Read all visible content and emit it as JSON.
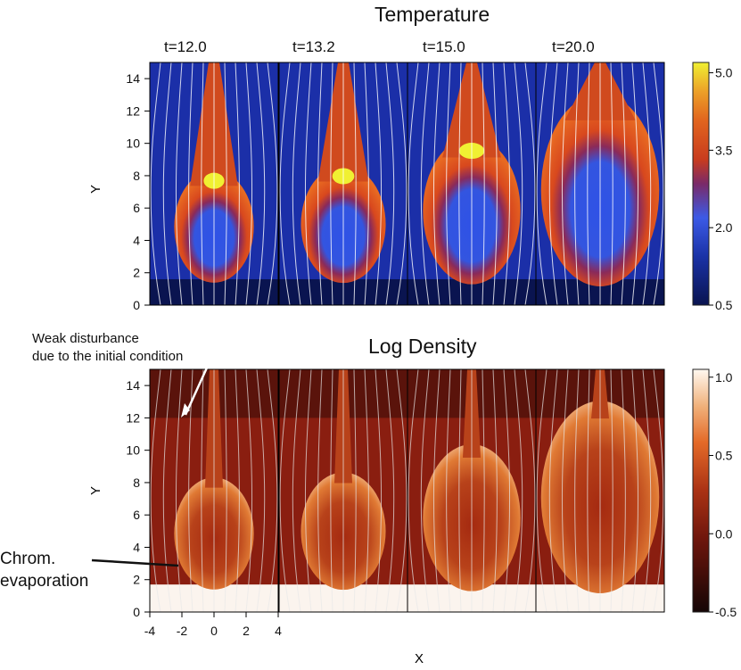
{
  "chart_data": [
    {
      "type": "heatmap",
      "title": "Temperature",
      "ylabel": "Y",
      "panel_times": [
        "t=12.0",
        "t=13.2",
        "t=15.0",
        "t=20.0"
      ],
      "y_ticks": [
        0,
        2,
        4,
        6,
        8,
        10,
        12,
        14
      ],
      "ylim": [
        0,
        15
      ],
      "colorbar": {
        "ticks": [
          "5.0",
          "3.5",
          "2.0",
          "0.5"
        ],
        "values": [
          5.0,
          3.5,
          2.0,
          0.5
        ],
        "range": [
          0.5,
          5.2
        ]
      },
      "colors": {
        "low": "#0a1450",
        "mid_low": "#2846d2",
        "mid": "#c83c1e",
        "mid_high": "#e67823",
        "high": "#f0f032"
      }
    },
    {
      "type": "heatmap",
      "title": "Log Density",
      "xlabel": "X",
      "ylabel": "Y",
      "x_ticks": [
        "-4",
        "-2",
        "0",
        "2",
        "4"
      ],
      "xlim": [
        -4,
        4
      ],
      "y_ticks": [
        0,
        2,
        4,
        6,
        8,
        10,
        12,
        14
      ],
      "ylim": [
        0,
        15
      ],
      "colorbar": {
        "ticks": [
          "1.0",
          "0.5",
          "0.0",
          "-0.5"
        ],
        "values": [
          1.0,
          0.5,
          0.0,
          -0.5
        ],
        "range": [
          -0.5,
          1.05
        ]
      },
      "colors": {
        "low": "#140505",
        "mid_low": "#6e160c",
        "mid": "#aa3214",
        "mid_high": "#e68237",
        "high": "#fff8f0"
      }
    }
  ],
  "annotations": {
    "weak_disturbance_line1": "Weak disturbance",
    "weak_disturbance_line2": "due to the initial condition",
    "chrom_line1": "Chrom.",
    "chrom_line2": "evaporation"
  }
}
